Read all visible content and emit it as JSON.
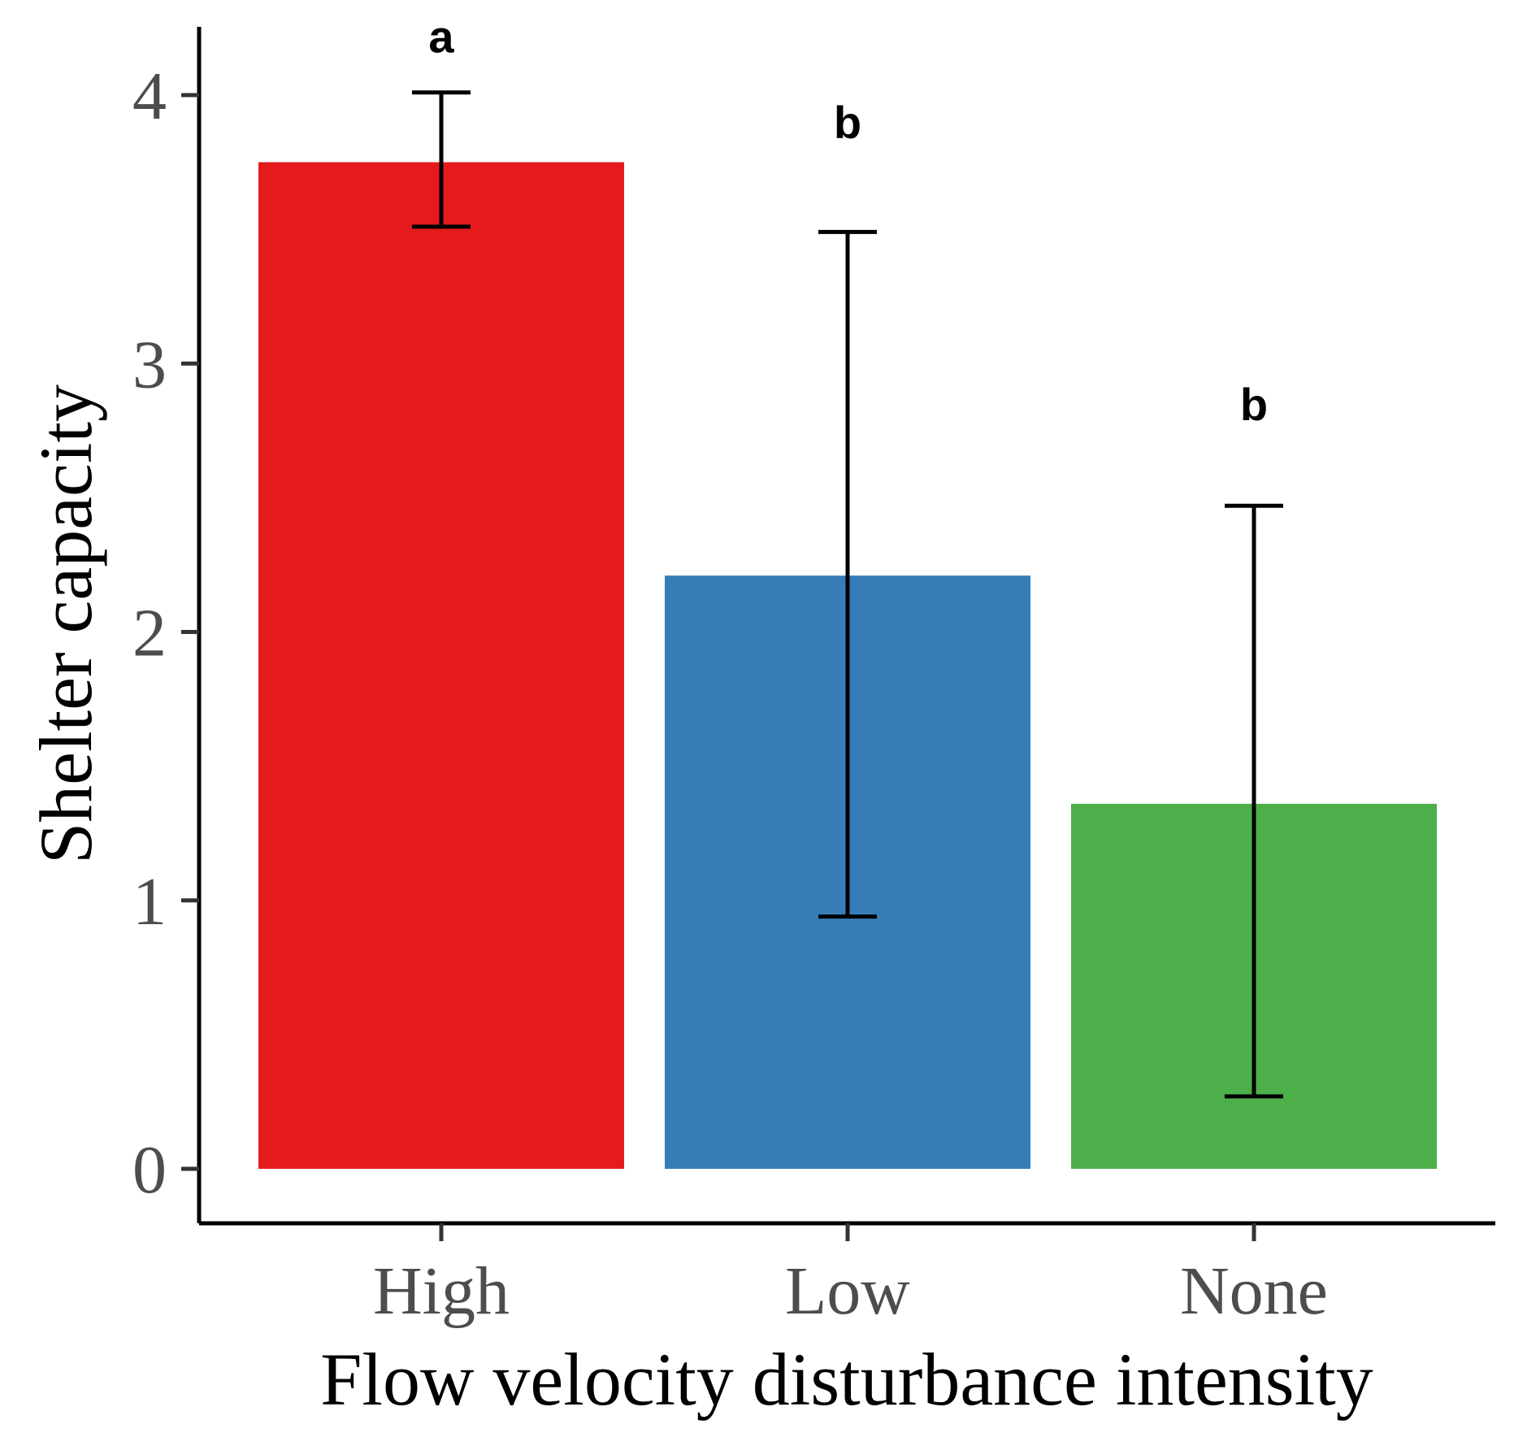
{
  "chart_data": {
    "type": "bar",
    "title": "",
    "xlabel": "Flow velocity disturbance intensity",
    "ylabel": "Shelter capacity",
    "categories": [
      "High",
      "Low",
      "None"
    ],
    "values": [
      3.75,
      2.21,
      1.36
    ],
    "error_low": [
      3.51,
      0.94,
      0.27
    ],
    "error_high": [
      4.01,
      3.49,
      2.47
    ],
    "significance_labels": [
      "a",
      "b",
      "b"
    ],
    "colors": [
      "#E41A1C",
      "#377EB8",
      "#4DAF4A"
    ],
    "ylim": [
      -0.2,
      4.25
    ],
    "yticks": [
      0,
      1,
      2,
      3,
      4
    ],
    "ytick_labels": [
      "0",
      "1",
      "2",
      "3",
      "4"
    ],
    "sig_label_values": [
      4.22,
      3.9,
      2.85
    ],
    "legend": "none",
    "grid": false
  }
}
